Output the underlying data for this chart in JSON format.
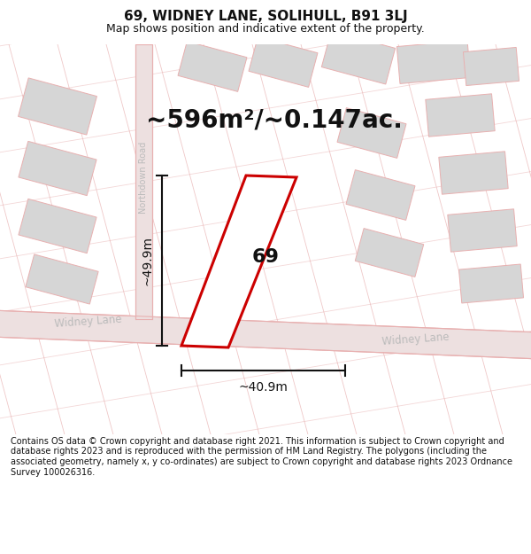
{
  "title": "69, WIDNEY LANE, SOLIHULL, B91 3LJ",
  "subtitle": "Map shows position and indicative extent of the property.",
  "footer": "Contains OS data © Crown copyright and database right 2021. This information is subject to Crown copyright and database rights 2023 and is reproduced with the permission of HM Land Registry. The polygons (including the associated geometry, namely x, y co-ordinates) are subject to Crown copyright and database rights 2023 Ordnance Survey 100026316.",
  "area_label": "~596m²/~0.147ac.",
  "number_label": "69",
  "width_label": "~40.9m",
  "height_label": "~49.9m",
  "road_label_ndown": "Northdown Road",
  "road_label_w1": "Widney Lane",
  "road_label_w2": "Widney Lane",
  "background_color": "#ffffff",
  "map_bg_color": "#faf6f6",
  "plot_fill_color": "#ffffff",
  "plot_edge_color": "#cc0000",
  "plot_edge_width": 2.2,
  "block_color": "#d6d6d6",
  "road_fill_color": "#ede0e0",
  "road_line_color": "#e8b0b0",
  "dim_line_color": "#111111",
  "text_color": "#111111",
  "road_text_color": "#bbbbbb",
  "title_fontsize": 11,
  "subtitle_fontsize": 9,
  "footer_fontsize": 7,
  "area_fontsize": 20,
  "label_fontsize": 16,
  "dim_fontsize": 10,
  "road_fontsize": 8.5
}
